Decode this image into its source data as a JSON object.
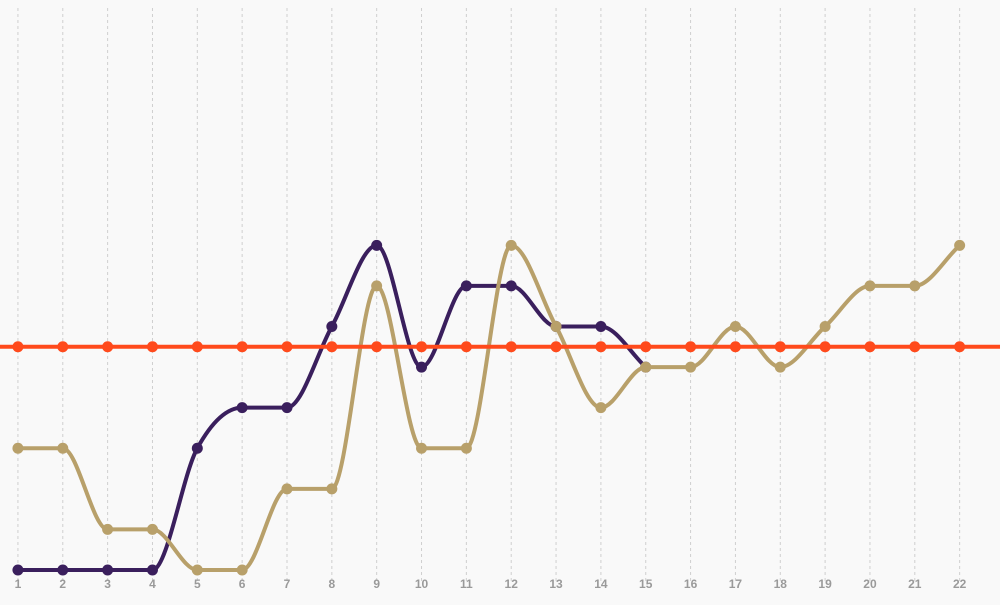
{
  "chart_data": {
    "type": "line",
    "x": [
      1,
      2,
      3,
      4,
      5,
      6,
      7,
      8,
      9,
      10,
      11,
      12,
      13,
      14,
      15,
      16,
      17,
      18,
      19,
      20,
      21,
      22
    ],
    "x_ticks": [
      "1",
      "2",
      "3",
      "4",
      "5",
      "6",
      "7",
      "8",
      "9",
      "10",
      "11",
      "12",
      "13",
      "14",
      "15",
      "16",
      "17",
      "18",
      "19",
      "20",
      "21",
      "22"
    ],
    "x_range": [
      0.6,
      22.9
    ],
    "ylim": [
      0,
      12
    ],
    "grid": {
      "vertical": true,
      "horizontal": false,
      "style": "dotted"
    },
    "legend": "none",
    "title": "",
    "xlabel": "",
    "ylabel": "",
    "series": [
      {
        "color": "#3a1f5d",
        "values": [
          0,
          0,
          0,
          0,
          3,
          4,
          4,
          6,
          8,
          5,
          7,
          7,
          6,
          6,
          5,
          null,
          null,
          null,
          null,
          null,
          null,
          null
        ]
      },
      {
        "color": "#b8a06a",
        "values": [
          3,
          3,
          1,
          1,
          0,
          0,
          2,
          2,
          7,
          3,
          3,
          8,
          6,
          4,
          5,
          5,
          6,
          5,
          6,
          7,
          7,
          8
        ]
      },
      {
        "color": "#ff4a1c",
        "values": [
          5.5,
          5.5,
          5.5,
          5.5,
          5.5,
          5.5,
          5.5,
          5.5,
          5.5,
          5.5,
          5.5,
          5.5,
          5.5,
          5.5,
          5.5,
          5.5,
          5.5,
          5.5,
          5.5,
          5.5,
          5.5,
          5.5
        ],
        "extend_full_width": true
      }
    ]
  }
}
